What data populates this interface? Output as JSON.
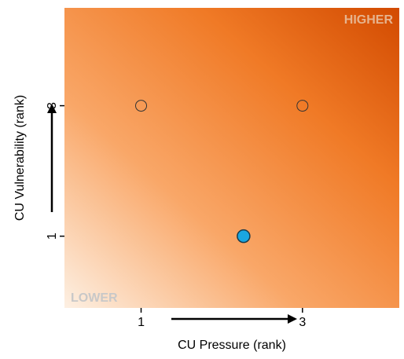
{
  "chart_data": {
    "type": "scatter",
    "title": "",
    "xlabel": "CU Pressure (rank)",
    "ylabel": "CU Vulnerability (rank)",
    "xlim": [
      0.05,
      4.2
    ],
    "ylim": [
      -0.1,
      4.5
    ],
    "x_ticks": [
      1,
      3
    ],
    "y_ticks": [
      1,
      3
    ],
    "x_tick_labels": [
      "1",
      "3"
    ],
    "y_tick_labels": [
      "1",
      "3"
    ],
    "corner_labels": {
      "high": "HIGHER",
      "low": "LOWER"
    },
    "background": {
      "type": "gradient",
      "low_color": "#fdf0e3",
      "high_color": "#d24a00",
      "direction": "bottom-left to top-right"
    },
    "grid": false,
    "legend": "none",
    "points": [
      {
        "x": 1,
        "y": 3,
        "fill": "none",
        "stroke": "#333333"
      },
      {
        "x": 3,
        "y": 3,
        "fill": "none",
        "stroke": "#333333"
      },
      {
        "x": 2.27,
        "y": 1,
        "fill": "#1aa6e0",
        "stroke": "#1a3a4a"
      }
    ]
  }
}
